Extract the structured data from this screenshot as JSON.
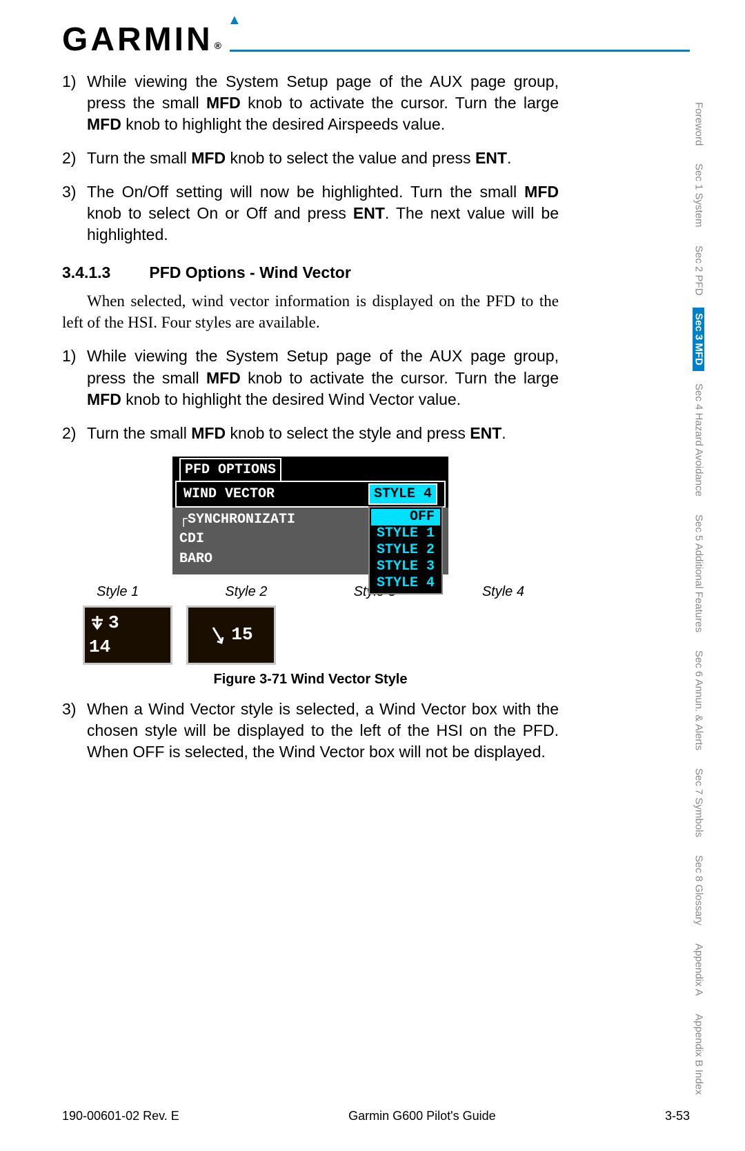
{
  "logo": {
    "text": "GARMIN",
    "reg": "®"
  },
  "steps_a": [
    {
      "n": "1)",
      "html": "While viewing the System Setup page of the AUX page group, press the small <b>MFD</b> knob to activate the cursor. Turn the large <b>MFD</b> knob to highlight the desired Airspeeds value."
    },
    {
      "n": "2)",
      "html": "Turn the small <b>MFD</b> knob to select the value and press <b>ENT</b>."
    },
    {
      "n": "3)",
      "html": "The On/Off setting will now be highlighted. Turn the small <b>MFD</b> knob to select On or Off and press <b>ENT</b>. The next value will be highlighted."
    }
  ],
  "heading": {
    "num": "3.4.1.3",
    "title": "PFD Options - Wind Vector"
  },
  "para": "When selected, wind vector information is displayed on the PFD to the left of the HSI. Four styles are available.",
  "steps_b": [
    {
      "n": "1)",
      "html": "While viewing the System Setup page of the AUX page group, press the small <b>MFD</b> knob to activate the cursor. Turn the large <b>MFD</b> knob to highlight the desired Wind Vector value."
    },
    {
      "n": "2)",
      "html": "Turn the small <b>MFD</b> knob to select the style and press <b>ENT</b>."
    }
  ],
  "figure": {
    "group_title": "PFD OPTIONS",
    "row_label": "WIND VECTOR",
    "row_value": "STYLE 4",
    "sync_title": "SYNCHRONIZATI",
    "sync_items": [
      "CDI",
      "BARO"
    ],
    "dropdown": [
      "OFF",
      "STYLE 1",
      "STYLE 2",
      "STYLE 3",
      "STYLE 4"
    ],
    "dropdown_selected": "OFF",
    "colors": {
      "panel_bg": "#000000",
      "inner_bg": "#5a5a5a",
      "text": "#ffffff",
      "cyan": "#00e0ff",
      "box_bg": "#1a0e00",
      "box_border": "#c8c8c8"
    }
  },
  "style_labels": [
    "Style 1",
    "Style 2",
    "Style 3",
    "Style 4"
  ],
  "style_boxes": {
    "box1": {
      "top_val": "3",
      "bottom_val": "14"
    },
    "box2": {
      "val": "15"
    }
  },
  "fig_caption": "Figure 3-71  Wind Vector Style",
  "steps_c": [
    {
      "n": "3)",
      "html": "When a Wind Vector style is selected, a Wind Vector box with the chosen style will be displayed to the left of the HSI on the PFD. When OFF is selected, the Wind Vector box will not be displayed."
    }
  ],
  "sidetabs": [
    {
      "label": "Foreword",
      "active": false
    },
    {
      "label": "Sec 1\nSystem",
      "active": false
    },
    {
      "label": "Sec 2\nPFD",
      "active": false
    },
    {
      "label": "Sec 3\nMFD",
      "active": true
    },
    {
      "label": "Sec 4\nHazard\nAvoidance",
      "active": false
    },
    {
      "label": "Sec 5\nAdditional\nFeatures",
      "active": false
    },
    {
      "label": "Sec 6\nAnnun.\n& Alerts",
      "active": false
    },
    {
      "label": "Sec 7\nSymbols",
      "active": false
    },
    {
      "label": "Sec 8\nGlossary",
      "active": false
    },
    {
      "label": "Appendix A",
      "active": false
    },
    {
      "label": "Appendix B\nIndex",
      "active": false
    }
  ],
  "footer": {
    "left": "190-00601-02  Rev. E",
    "center": "Garmin G600 Pilot's Guide",
    "right": "3-53"
  }
}
